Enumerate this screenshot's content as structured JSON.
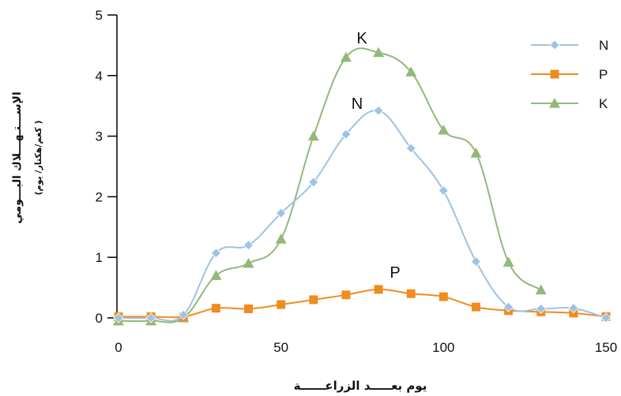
{
  "chart_data": {
    "type": "line",
    "xlabel": "يوم بعـــــد الزراعــــــة",
    "ylabel": "الإســـتـهـــلاك اليـــومي",
    "ylabel_unit": "( كغم/هكتار/ يوم)",
    "xlim": [
      0,
      150
    ],
    "ylim": [
      0,
      5
    ],
    "x_ticks": [
      "0",
      "50",
      "100",
      "150"
    ],
    "y_ticks": [
      "0",
      "1",
      "2",
      "3",
      "4",
      "5"
    ],
    "grid": false,
    "legend": "top-right",
    "series": [
      {
        "name": "N",
        "label": "N",
        "color": "#9dc3e6",
        "marker": "diamond",
        "x": [
          0,
          10,
          20,
          30,
          40,
          50,
          60,
          70,
          80,
          90,
          100,
          110,
          120,
          130,
          140,
          150
        ],
        "y": [
          0.0,
          0.0,
          0.05,
          1.07,
          1.2,
          1.73,
          2.24,
          3.03,
          3.42,
          2.8,
          2.1,
          0.93,
          0.18,
          0.15,
          0.16,
          0.0
        ]
      },
      {
        "name": "P",
        "label": "P",
        "color": "#f08c1e",
        "marker": "square",
        "x": [
          0,
          10,
          20,
          30,
          40,
          50,
          60,
          70,
          80,
          90,
          100,
          110,
          120,
          130,
          140,
          150
        ],
        "y": [
          0.02,
          0.02,
          0.02,
          0.16,
          0.15,
          0.22,
          0.3,
          0.38,
          0.47,
          0.4,
          0.35,
          0.18,
          0.12,
          0.1,
          0.08,
          0.02
        ]
      },
      {
        "name": "K",
        "label": "K",
        "color": "#93b87a",
        "marker": "triangle",
        "x": [
          0,
          10,
          20,
          30,
          40,
          50,
          60,
          70,
          80,
          90,
          100,
          110,
          120,
          130
        ],
        "y": [
          -0.05,
          -0.05,
          0.0,
          0.7,
          0.9,
          1.3,
          3.0,
          4.3,
          4.38,
          4.06,
          3.1,
          2.72,
          0.92,
          0.46
        ]
      }
    ]
  }
}
